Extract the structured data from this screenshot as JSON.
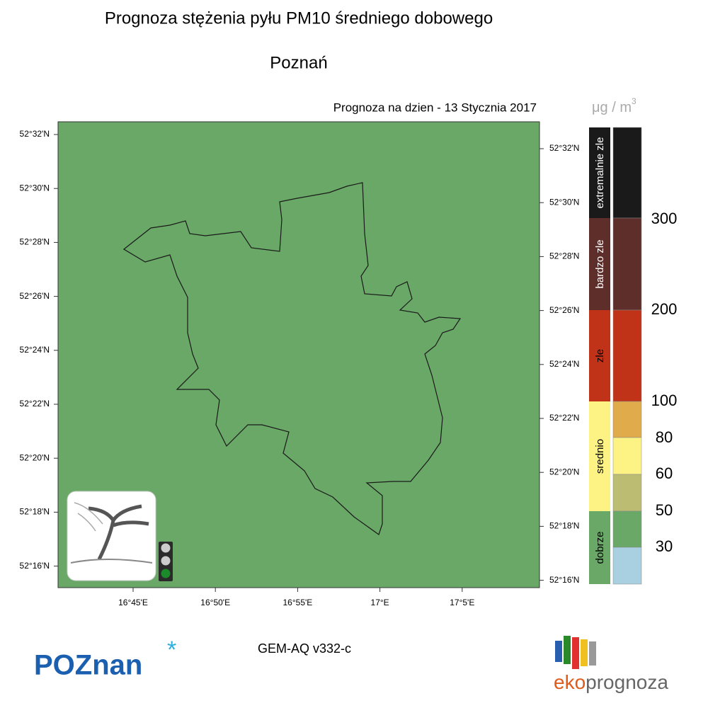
{
  "title": "Prognoza stężenia pyłu PM10 średniego dobowego",
  "subtitle": "Poznań",
  "date_label": "Prognoza na dzien -  13 Stycznia 2017",
  "unit": {
    "base": "μg / m",
    "exponent": "3"
  },
  "map": {
    "left_ticks": [
      "52°32'N",
      "52°30'N",
      "52°28'N",
      "52°26'N",
      "52°24'N",
      "52°22'N",
      "52°20'N",
      "52°18'N",
      "52°16'N"
    ],
    "right_ticks": [
      "52°32'N",
      "52°30'N",
      "52°28'N",
      "52°26'N",
      "52°24'N",
      "52°22'N",
      "52°20'N",
      "52°18'N",
      "52°16'N"
    ],
    "bottom_ticks": [
      "16°45'E",
      "16°50'E",
      "16°55'E",
      "17°E",
      "17°5'E"
    ]
  },
  "legend": {
    "categories": [
      "extremalnie zle",
      "bardzo zle",
      "zle",
      "srednio",
      "dobrze"
    ],
    "thresholds": [
      "300",
      "200",
      "100",
      "80",
      "60",
      "50",
      "30"
    ]
  },
  "footer": {
    "model": "GEM-AQ v332-c",
    "city_logo": "POZnan",
    "brand_part1": "eko",
    "brand_part2": "prognoza"
  }
}
